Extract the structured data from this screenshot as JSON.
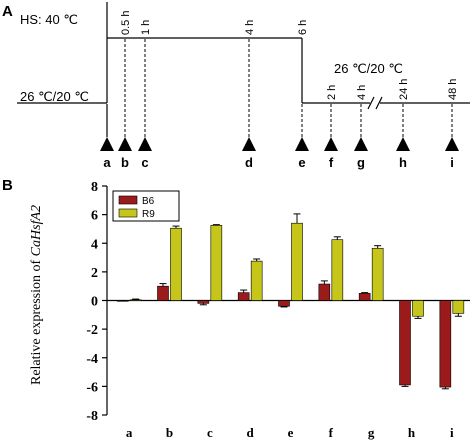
{
  "panel_a": {
    "label": "A",
    "heat_label": "HS: 40 ℃",
    "recovery_label": "26 ℃/20 ℃",
    "baseline_label": "26 ℃/20 ℃",
    "heat_times": [
      "0.5 h",
      "1 h",
      "4 h",
      "6 h"
    ],
    "recovery_times": [
      "2 h",
      "4 h",
      "24 h",
      "48 h"
    ],
    "points": [
      "a",
      "b",
      "c",
      "d",
      "e",
      "f",
      "g",
      "h",
      "i"
    ]
  },
  "panel_b": {
    "label": "B",
    "ylabel_prefix": "Relative expression of ",
    "ylabel_gene": "CaHsfA2"
  },
  "chart_data": {
    "type": "bar",
    "categories": [
      "a",
      "b",
      "c",
      "d",
      "e",
      "f",
      "g",
      "h",
      "i"
    ],
    "series": [
      {
        "name": "B6",
        "color": "#9b1b1b",
        "values": [
          0.0,
          1.0,
          -0.2,
          0.55,
          -0.4,
          1.15,
          0.5,
          -5.9,
          -6.05
        ],
        "errors": [
          0.0,
          0.18,
          0.1,
          0.18,
          0.05,
          0.22,
          0.05,
          0.1,
          0.12
        ]
      },
      {
        "name": "R9",
        "color": "#c6c61a",
        "values": [
          0.05,
          5.05,
          5.25,
          2.75,
          5.4,
          4.25,
          3.65,
          -1.1,
          -0.9
        ],
        "errors": [
          0.05,
          0.15,
          0.05,
          0.15,
          0.65,
          0.2,
          0.18,
          0.15,
          0.2
        ]
      }
    ],
    "ylim": [
      -8,
      8
    ],
    "yticks": [
      "8",
      "6",
      "4",
      "2",
      "0",
      "-2",
      "-4",
      "-6",
      "-8"
    ],
    "legend_position": "top-left"
  }
}
